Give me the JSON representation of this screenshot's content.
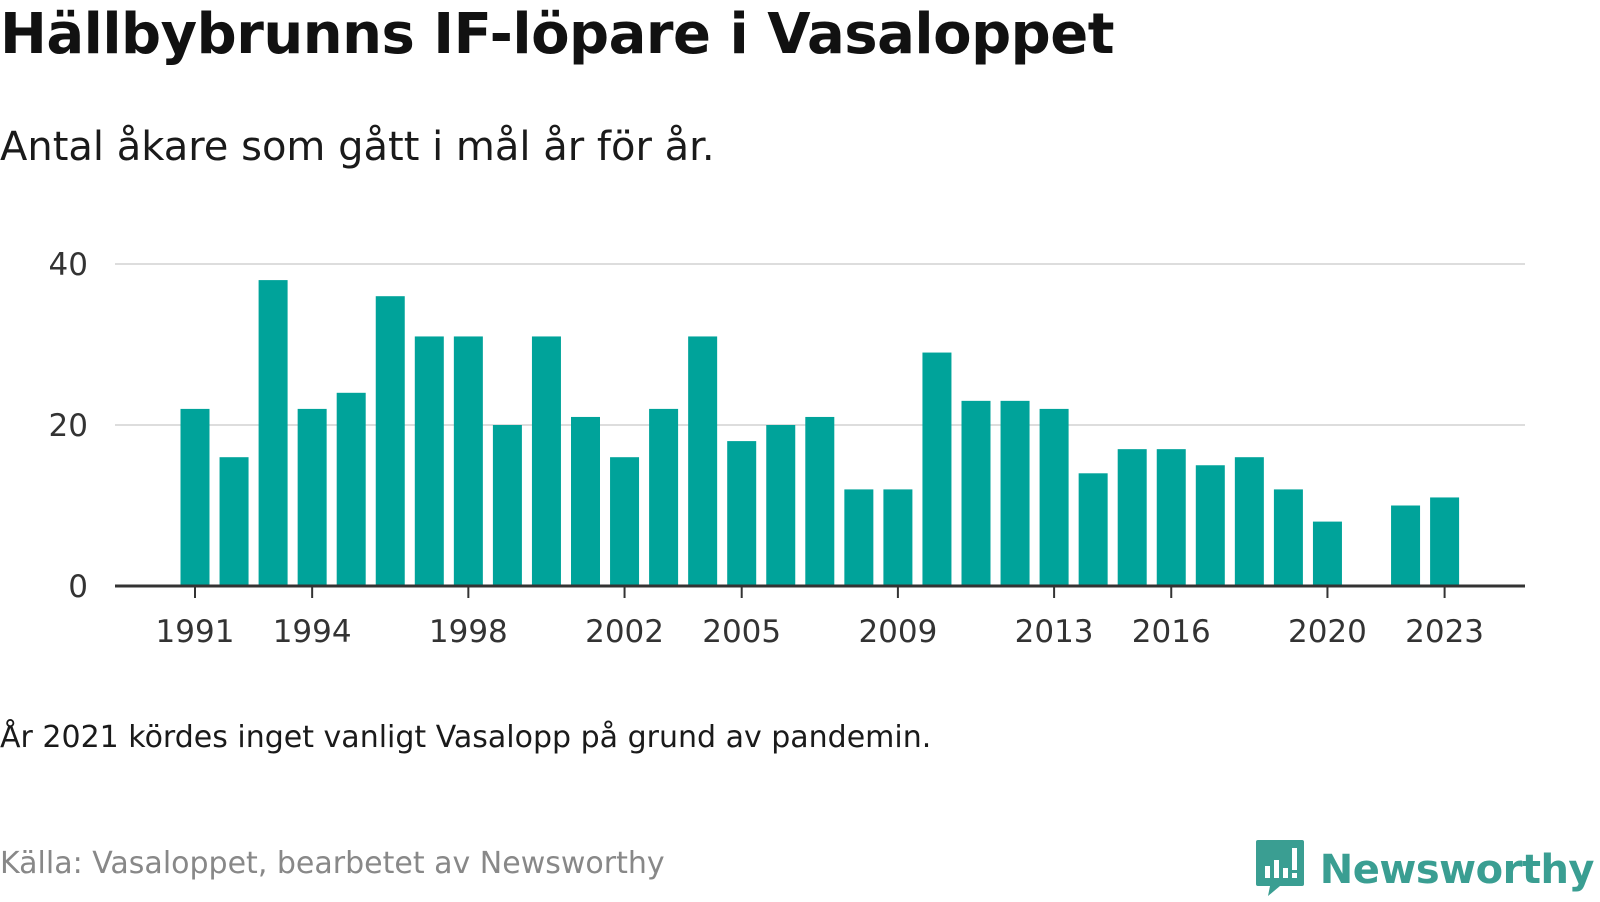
{
  "title": "Hällbybrunns IF-löpare i Vasaloppet",
  "subtitle": "Antal åkare som gått i mål år för år.",
  "note": "År 2021 kördes inget vanligt Vasalopp på grund av pandemin.",
  "source": "Källa: Vasaloppet, bearbetet av Newsworthy",
  "brand": {
    "name": "Newsworthy",
    "icon": "newsworthy-logo-icon",
    "color": "#3a9e92"
  },
  "colors": {
    "bar": "#00a39a",
    "grid": "#dddddd",
    "axis": "#333333"
  },
  "chart_data": {
    "type": "bar",
    "title": "Hällbybrunns IF-löpare i Vasaloppet",
    "subtitle": "Antal åkare som gått i mål år för år.",
    "xlabel": "",
    "ylabel": "",
    "ylim": [
      0,
      40
    ],
    "yticks": [
      0,
      20,
      40
    ],
    "xticks": [
      1991,
      1994,
      1998,
      2002,
      2005,
      2009,
      2013,
      2016,
      2020,
      2023
    ],
    "grid": true,
    "categories": [
      1991,
      1992,
      1993,
      1994,
      1995,
      1996,
      1997,
      1998,
      1999,
      2000,
      2001,
      2002,
      2003,
      2004,
      2005,
      2006,
      2007,
      2008,
      2009,
      2010,
      2011,
      2012,
      2013,
      2014,
      2015,
      2016,
      2017,
      2018,
      2019,
      2020,
      2021,
      2022,
      2023
    ],
    "values": [
      22,
      16,
      38,
      22,
      24,
      36,
      31,
      31,
      20,
      31,
      21,
      16,
      22,
      31,
      18,
      20,
      21,
      12,
      12,
      29,
      23,
      23,
      22,
      14,
      17,
      17,
      15,
      16,
      12,
      8,
      null,
      10,
      11
    ]
  }
}
